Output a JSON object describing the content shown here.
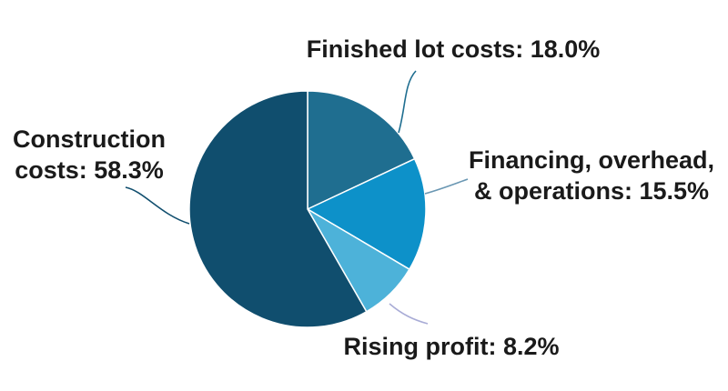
{
  "chart_data": {
    "type": "pie",
    "title": "",
    "start_angle_deg": 0,
    "direction": "clockwise",
    "slices": [
      {
        "label_lines": [
          "Finished lot costs: 18.0%"
        ],
        "value": 18.0,
        "color": "#1f6e90",
        "line_color": "#1f6e90"
      },
      {
        "label_lines": [
          "Financing, overhead,",
          "& operations: 15.5%"
        ],
        "value": 15.5,
        "color": "#0d91c9",
        "line_color": "#6a97b3"
      },
      {
        "label_lines": [
          "Rising profit: 8.2%"
        ],
        "value": 8.2,
        "color": "#4db2d9",
        "line_color": "#a9acd6"
      },
      {
        "label_lines": [
          "Construction",
          "costs: 58.3%"
        ],
        "value": 58.3,
        "color": "#104e6e",
        "line_color": "#104e6e"
      }
    ]
  }
}
